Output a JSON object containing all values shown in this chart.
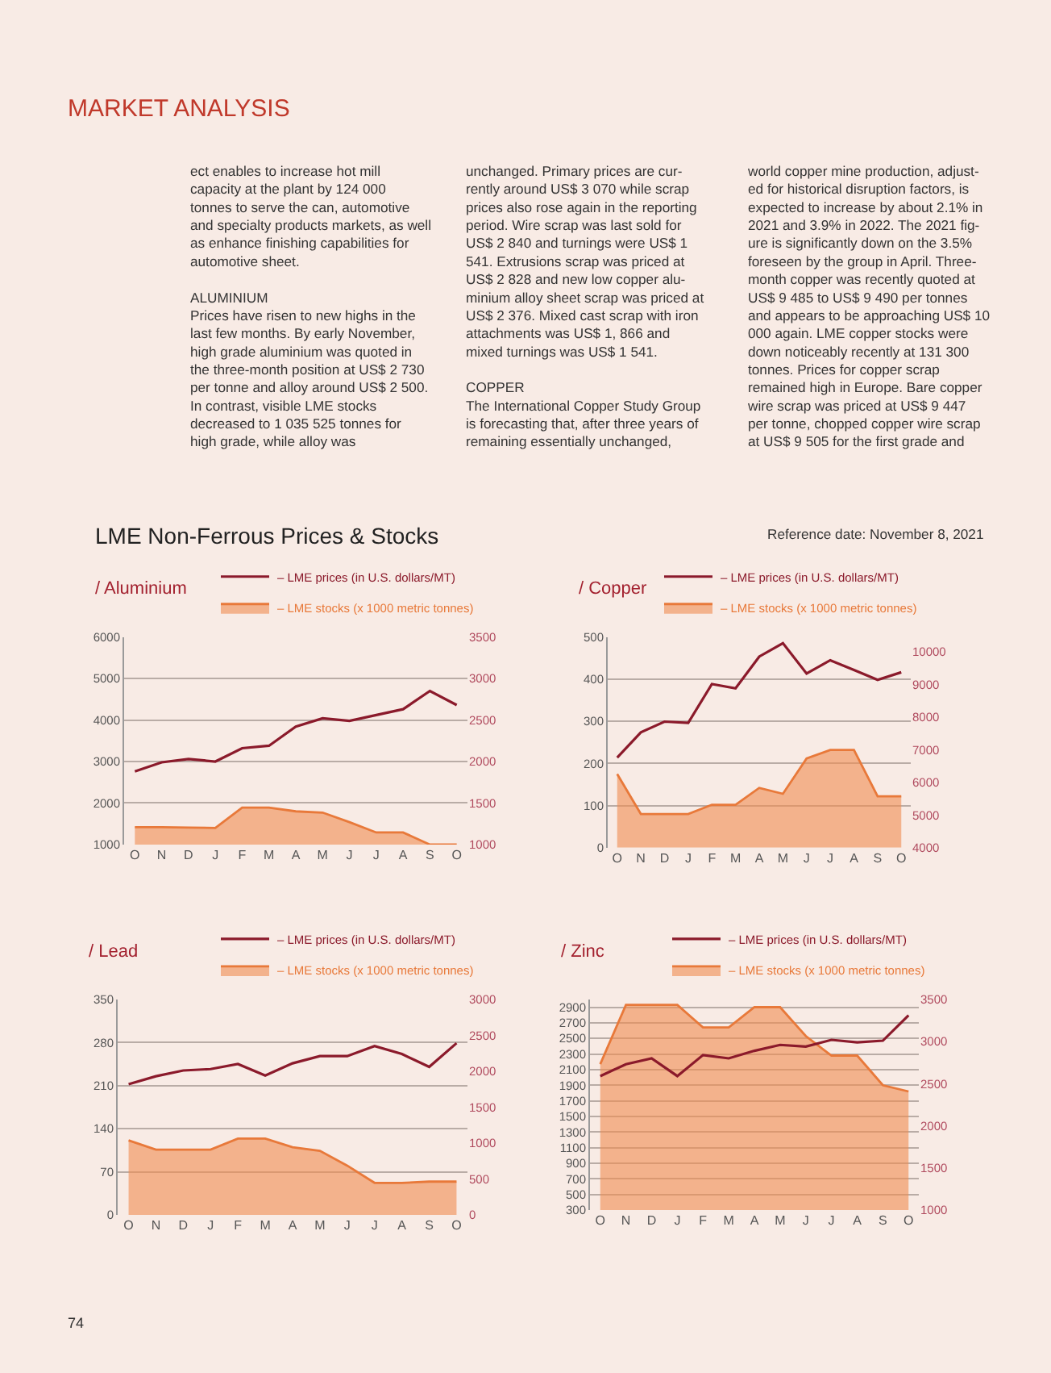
{
  "chart_data": [
    {
      "type": "other",
      "title": "MARKET ANALYSIS",
      "annotations": [
        "ect enables to increase hot mill\ncapacity at the plant by 124 000\ntonnes to serve the can, automotive\nand specialty products markets, as well\nas enhance finishing capabilities for\nautomotive sheet.\n\nALUMINIUM\nPrices have risen to new highs in the\nlast few months. By early November,\nhigh grade aluminium was quoted in\nthe three-month position at US$ 2 730\nper tonne and alloy around US$ 2 500.\nIn contrast, visible LME stocks\ndecreased to 1 035 525 tonnes for\nhigh grade, while alloy was",
        "unchanged. Primary prices are cur-\nrently around US$ 3 070 while scrap\nprices also rose again in the reporting\nperiod. Wire scrap was last sold for\nUS$ 2 840 and turnings were US$ 1\n541. Extrusions scrap was priced at\nUS$ 2 828 and new low copper alu-\nminium alloy sheet scrap was priced at\nUS$ 2 376. Mixed cast scrap with iron\nattachments was US$ 1, 866 and\nmixed turnings was US$ 1 541.\n\nCOPPER\nThe International Copper Study Group\nis forecasting that, after three years of\nremaining essentially unchanged,",
        "world copper mine production, adjust-\ned for historical disruption factors, is\nexpected to increase by about 2.1% in\n2021 and 3.9% in 2022. The 2021 fig-\nure is significantly down on the 3.5%\nforeseen by the group in April. Three-\nmonth copper was recently quoted at\nUS$ 9 485 to US$ 9 490 per tonnes\nand appears to be approaching US$ 10\n000 again. LME copper stocks were\ndown noticeably recently at 131 300\ntonnes. Prices for copper scrap\nremained high in Europe. Bare copper\nwire scrap was priced at US$ 9 447\nper tonne, chopped copper wire scrap\nat US$ 9 505 for the first grade and",
        "74"
      ]
    },
    {
      "type": "other",
      "title": "LME Non-Ferrous Prices & Stocks",
      "annotations": [
        "Reference date: November 8, 2021"
      ]
    },
    {
      "type": "line",
      "title": "/ Aluminium",
      "categories": [
        "O",
        "N",
        "D",
        "J",
        "F",
        "M",
        "A",
        "M",
        "J",
        "J",
        "A",
        "S",
        "O"
      ],
      "ylim": [
        1000,
        6000
      ],
      "yticks": [
        1000,
        2000,
        3000,
        4000,
        5000,
        6000
      ],
      "y2lim": [
        1000,
        3500
      ],
      "y2ticks": [
        1000,
        1500,
        2000,
        2500,
        3000,
        3500
      ],
      "grid": "y",
      "legend": "top right",
      "series": [
        {
          "name": "– LME prices (in U.S. dollars/MT)",
          "color": "#8b1a2b",
          "axis": "y2",
          "values": [
            1880,
            1990,
            2030,
            2000,
            2160,
            2190,
            2420,
            2520,
            2490,
            2560,
            2630,
            2850,
            2680
          ]
        },
        {
          "name": "– LME stocks (x 1000 metric tonnes)",
          "type": "area",
          "color": "#e8793a",
          "values": [
            1420,
            1420,
            1410,
            1400,
            1890,
            1890,
            1800,
            1770,
            1540,
            1290,
            1290,
            1000,
            1000
          ]
        }
      ]
    },
    {
      "type": "line",
      "title": "/ Copper",
      "categories": [
        "O",
        "N",
        "D",
        "J",
        "F",
        "M",
        "A",
        "M",
        "J",
        "J",
        "A",
        "S",
        "O"
      ],
      "ylim": [
        0,
        500
      ],
      "yticks": [
        0,
        100,
        200,
        300,
        400,
        500
      ],
      "y2lim": [
        4000,
        10450
      ],
      "y2ticks": [
        4000,
        5000,
        6000,
        7000,
        8000,
        9000,
        10000
      ],
      "grid": "y",
      "legend": "top right",
      "series": [
        {
          "name": "– LME prices (in U.S. dollars/MT)",
          "color": "#8b1a2b",
          "axis": "y2",
          "values": [
            6760,
            7530,
            7860,
            7820,
            9010,
            8880,
            9850,
            10260,
            9330,
            9740,
            9440,
            9140,
            9370
          ]
        },
        {
          "name": "– LME stocks (x 1000 metric tonnes)",
          "type": "area",
          "color": "#e8793a",
          "values": [
            175,
            80,
            80,
            80,
            102,
            102,
            142,
            128,
            212,
            232,
            232,
            122,
            122
          ]
        }
      ]
    },
    {
      "type": "line",
      "title": "/ Lead",
      "categories": [
        "O",
        "N",
        "D",
        "J",
        "F",
        "M",
        "A",
        "M",
        "J",
        "J",
        "A",
        "S",
        "O"
      ],
      "ylim": [
        0,
        350
      ],
      "yticks": [
        0,
        70,
        140,
        210,
        280,
        350
      ],
      "y2lim": [
        0,
        3000
      ],
      "y2ticks": [
        0,
        500,
        1000,
        1500,
        2000,
        2500,
        3000
      ],
      "grid": "y",
      "legend": "top right",
      "series": [
        {
          "name": "– LME prices (in U.S. dollars/MT)",
          "color": "#8b1a2b",
          "axis": "y2",
          "values": [
            1820,
            1930,
            2010,
            2030,
            2100,
            1940,
            2110,
            2210,
            2210,
            2350,
            2240,
            2060,
            2390
          ]
        },
        {
          "name": "– LME stocks (x 1000 metric tonnes)",
          "type": "area",
          "color": "#e8793a",
          "values": [
            121,
            106,
            106,
            106,
            124,
            124,
            110,
            104,
            80,
            52,
            52,
            54,
            54
          ]
        }
      ]
    },
    {
      "type": "line",
      "title": "/ Zinc",
      "categories": [
        "O",
        "N",
        "D",
        "J",
        "F",
        "M",
        "A",
        "M",
        "J",
        "J",
        "A",
        "S",
        "O"
      ],
      "ylim": [
        300,
        3000
      ],
      "yticks": [
        300,
        500,
        700,
        900,
        1100,
        1300,
        1500,
        1700,
        1900,
        2100,
        2300,
        2500,
        2700,
        2900
      ],
      "y2lim": [
        1000,
        3500
      ],
      "y2ticks": [
        1000,
        1500,
        2000,
        2500,
        3000,
        3500
      ],
      "grid": "y",
      "legend": "top right",
      "series": [
        {
          "name": "– LME prices (in U.S. dollars/MT)",
          "color": "#8b1a2b",
          "axis": "y2",
          "values": [
            2590,
            2730,
            2800,
            2590,
            2840,
            2800,
            2890,
            2960,
            2940,
            3020,
            2990,
            3010,
            3310
          ]
        },
        {
          "name": "– LME stocks (x 1000 metric tonnes)",
          "type": "area",
          "color": "#e8793a",
          "values": [
            2170,
            2930,
            2930,
            2930,
            2640,
            2640,
            2900,
            2900,
            2530,
            2280,
            2280,
            1900,
            1820
          ]
        }
      ]
    }
  ]
}
